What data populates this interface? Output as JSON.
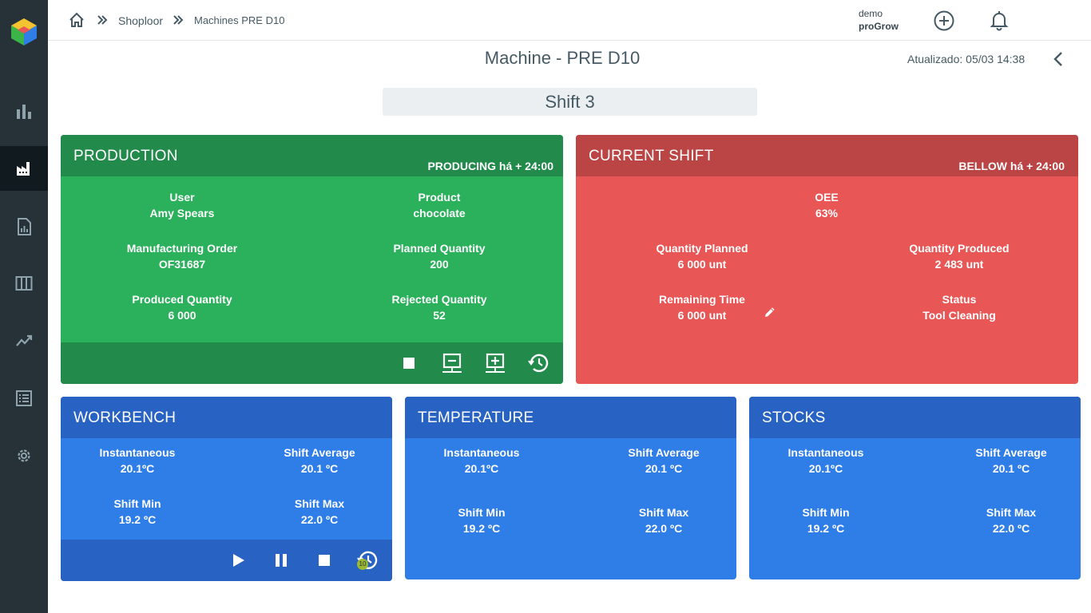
{
  "header": {
    "breadcrumb": [
      "Shoploor",
      "Machines PRE D10"
    ],
    "user": "demo",
    "org": "proGrow"
  },
  "page": {
    "title": "Machine - PRE D10",
    "updated": "Atualizado: 05/03 14:38",
    "shift": "Shift 3"
  },
  "production": {
    "title": "PRODUCTION",
    "status": "PRODUCING há + 24:00",
    "fields": [
      {
        "label": "User",
        "value": "Amy Spears"
      },
      {
        "label": "Product",
        "value": "chocolate"
      },
      {
        "label": "Manufacturing Order",
        "value": "OF31687"
      },
      {
        "label": "Planned Quantity",
        "value": "200"
      },
      {
        "label": "Produced Quantity",
        "value": "6 000"
      },
      {
        "label": "Rejected Quantity",
        "value": "52"
      }
    ]
  },
  "current_shift": {
    "title": "CURRENT SHIFT",
    "status": "BELLOW há + 24:00",
    "oee": {
      "label": "OEE",
      "value": "63%"
    },
    "fields": [
      {
        "label": "Quantity Planned",
        "value": "6 000 unt"
      },
      {
        "label": "Quantity Produced",
        "value": "2 483 unt"
      },
      {
        "label": "Remaining Time",
        "value": "6 000 unt"
      },
      {
        "label": "Status",
        "value": "Tool Cleaning"
      }
    ]
  },
  "workbench": {
    "title": "WORKBENCH",
    "badge": "10",
    "fields": [
      {
        "label": "Instantaneous",
        "value": "20.1ºC"
      },
      {
        "label": "Shift Average",
        "value": "20.1 ºC"
      },
      {
        "label": "Shift Min",
        "value": "19.2 ºC"
      },
      {
        "label": "Shift Max",
        "value": "22.0 ºC"
      }
    ]
  },
  "temperature": {
    "title": "TEMPERATURE",
    "fields": [
      {
        "label": "Instantaneous",
        "value": "20.1ºC"
      },
      {
        "label": "Shift Average",
        "value": "20.1 ºC"
      },
      {
        "label": "Shift Min",
        "value": "19.2 ºC"
      },
      {
        "label": "Shift Max",
        "value": "22.0 ºC"
      }
    ]
  },
  "stocks": {
    "title": "STOCKS",
    "fields": [
      {
        "label": "Instantaneous",
        "value": "20.1ºC"
      },
      {
        "label": "Shift Average",
        "value": "20.1 ºC"
      },
      {
        "label": "Shift Min",
        "value": "19.2 ºC"
      },
      {
        "label": "Shift Max",
        "value": "22.0 ºC"
      }
    ]
  },
  "icons": {
    "home": "home-icon",
    "add": "plus-circle-icon",
    "bell": "bell-icon",
    "back": "chevron-left-icon",
    "edit": "pencil-icon",
    "stop": "stop-icon",
    "remove": "monitor-minus-icon",
    "add_device": "monitor-plus-icon",
    "history": "history-icon",
    "play": "play-icon",
    "pause": "pause-icon"
  },
  "colors": {
    "sidebar": "#263238",
    "green": "#2bb05b",
    "green_dark": "#228b4b",
    "red": "#e85656",
    "red_dark": "#bb4444",
    "blue": "#2f7de6",
    "blue_dark": "#2862c2"
  }
}
